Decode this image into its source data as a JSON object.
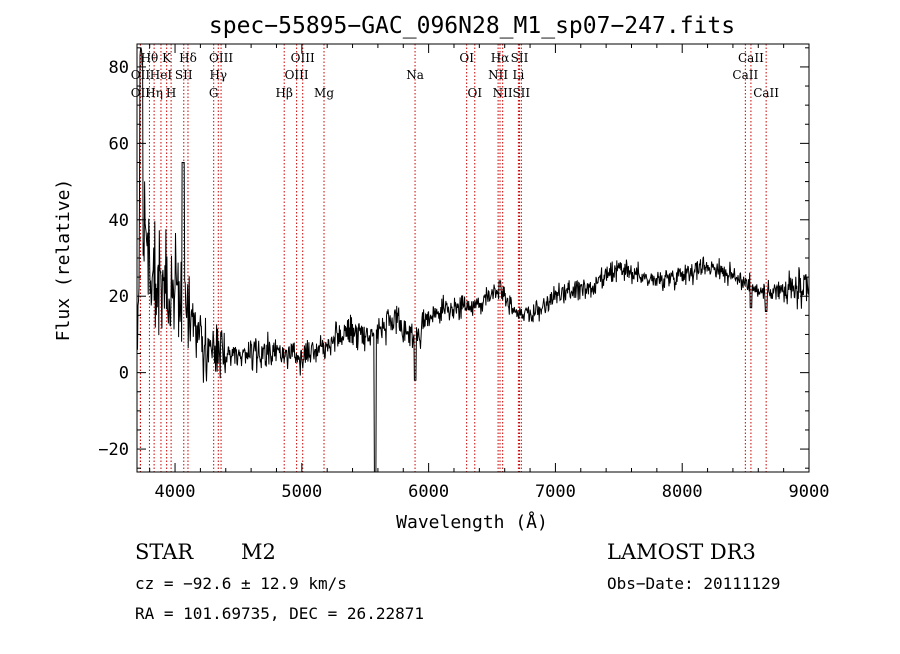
{
  "chart_data": {
    "type": "line",
    "title": "spec−55895−GAC_096N28_M1_sp07−247.fits",
    "xlabel": "Wavelength (Å)",
    "ylabel": "Flux (relative)",
    "xlim": [
      3700,
      9000
    ],
    "ylim": [
      -26,
      86
    ],
    "x_ticks": [
      4000,
      5000,
      6000,
      7000,
      8000,
      9000
    ],
    "y_ticks": [
      -20,
      0,
      20,
      40,
      60,
      80
    ],
    "x_tick_labels": [
      "4000",
      "5000",
      "6000",
      "7000",
      "8000",
      "9000"
    ],
    "y_tick_labels": [
      "−20",
      "0",
      "20",
      "40",
      "60",
      "80"
    ],
    "grid": false,
    "spectrum_anchors": {
      "x": [
        3700,
        3730,
        3800,
        3900,
        4000,
        4100,
        4200,
        4300,
        4400,
        4500,
        4700,
        4900,
        5000,
        5100,
        5200,
        5300,
        5400,
        5500,
        5600,
        5700,
        5800,
        5890,
        5950,
        6000,
        6100,
        6200,
        6300,
        6400,
        6500,
        6560,
        6620,
        6700,
        6800,
        6900,
        7000,
        7100,
        7200,
        7300,
        7400,
        7500,
        7600,
        7700,
        7800,
        7900,
        8000,
        8100,
        8200,
        8300,
        8400,
        8500,
        8550,
        8600,
        8700,
        8800,
        8900,
        9000
      ],
      "flux": [
        10,
        50,
        26,
        24,
        20,
        18,
        8,
        6,
        5,
        5,
        5,
        5,
        5,
        6,
        8,
        10,
        11,
        10,
        11,
        13,
        12,
        9,
        12,
        14,
        16,
        17,
        17,
        18,
        21,
        22,
        19,
        16,
        15,
        17,
        20,
        21,
        22,
        22,
        25,
        27,
        26,
        25,
        24,
        25,
        26,
        27,
        28,
        27,
        25,
        24,
        23,
        21,
        22,
        21,
        22,
        20
      ]
    },
    "spectrum_features": [
      {
        "x": 5577,
        "flux": -30
      },
      {
        "x": 5893,
        "flux": -2
      },
      {
        "x": 6563,
        "flux": 24
      },
      {
        "x": 8542,
        "flux": 17
      },
      {
        "x": 8662,
        "flux": 16
      }
    ],
    "line_markers": [
      {
        "label": "OII",
        "x": 3727,
        "row": 3
      },
      {
        "label": "Hθ",
        "x": 3798,
        "row": 1
      },
      {
        "label": "Hη",
        "x": 3835,
        "row": 3
      },
      {
        "label": "OII",
        "x": 3727,
        "row": 2
      },
      {
        "label": "HeI",
        "x": 3889,
        "row": 2
      },
      {
        "label": "K",
        "x": 3934,
        "row": 1
      },
      {
        "label": "H",
        "x": 3969,
        "row": 3
      },
      {
        "label": "SII",
        "x": 4069,
        "row": 2
      },
      {
        "label": "Hδ",
        "x": 4102,
        "row": 1
      },
      {
        "label": "OIII",
        "x": 4363,
        "row": 1
      },
      {
        "label": "Hγ",
        "x": 4341,
        "row": 2
      },
      {
        "label": "G",
        "x": 4305,
        "row": 3
      },
      {
        "label": "Hβ",
        "x": 4861,
        "row": 3
      },
      {
        "label": "OIII",
        "x": 4959,
        "row": 2
      },
      {
        "label": "OIII",
        "x": 5007,
        "row": 1
      },
      {
        "label": "Mg",
        "x": 5175,
        "row": 3
      },
      {
        "label": "Na",
        "x": 5893,
        "row": 2
      },
      {
        "label": "OI",
        "x": 6300,
        "row": 1
      },
      {
        "label": "OI",
        "x": 6364,
        "row": 3
      },
      {
        "label": "Hα",
        "x": 6563,
        "row": 1
      },
      {
        "label": "NII",
        "x": 6548,
        "row": 2
      },
      {
        "label": "NII",
        "x": 6584,
        "row": 3
      },
      {
        "label": "SII",
        "x": 6717,
        "row": 1
      },
      {
        "label": "Li",
        "x": 6708,
        "row": 2
      },
      {
        "label": "SII",
        "x": 6731,
        "row": 3
      },
      {
        "label": "CaII",
        "x": 8498,
        "row": 2
      },
      {
        "label": "CaII",
        "x": 8542,
        "row": 1
      },
      {
        "label": "CaII",
        "x": 8662,
        "row": 3
      }
    ]
  },
  "info": {
    "object_class": "STAR",
    "subclass": "M2",
    "survey": "LAMOST DR3",
    "cz": "cz = −92.6 ± 12.9 km/s",
    "obs_date": "Obs−Date: 20111129",
    "coords": "RA = 101.69735, DEC =  26.22871"
  },
  "colors": {
    "axis": "#000000",
    "spectrum": "#000000",
    "marker_line": "#cc0000"
  }
}
